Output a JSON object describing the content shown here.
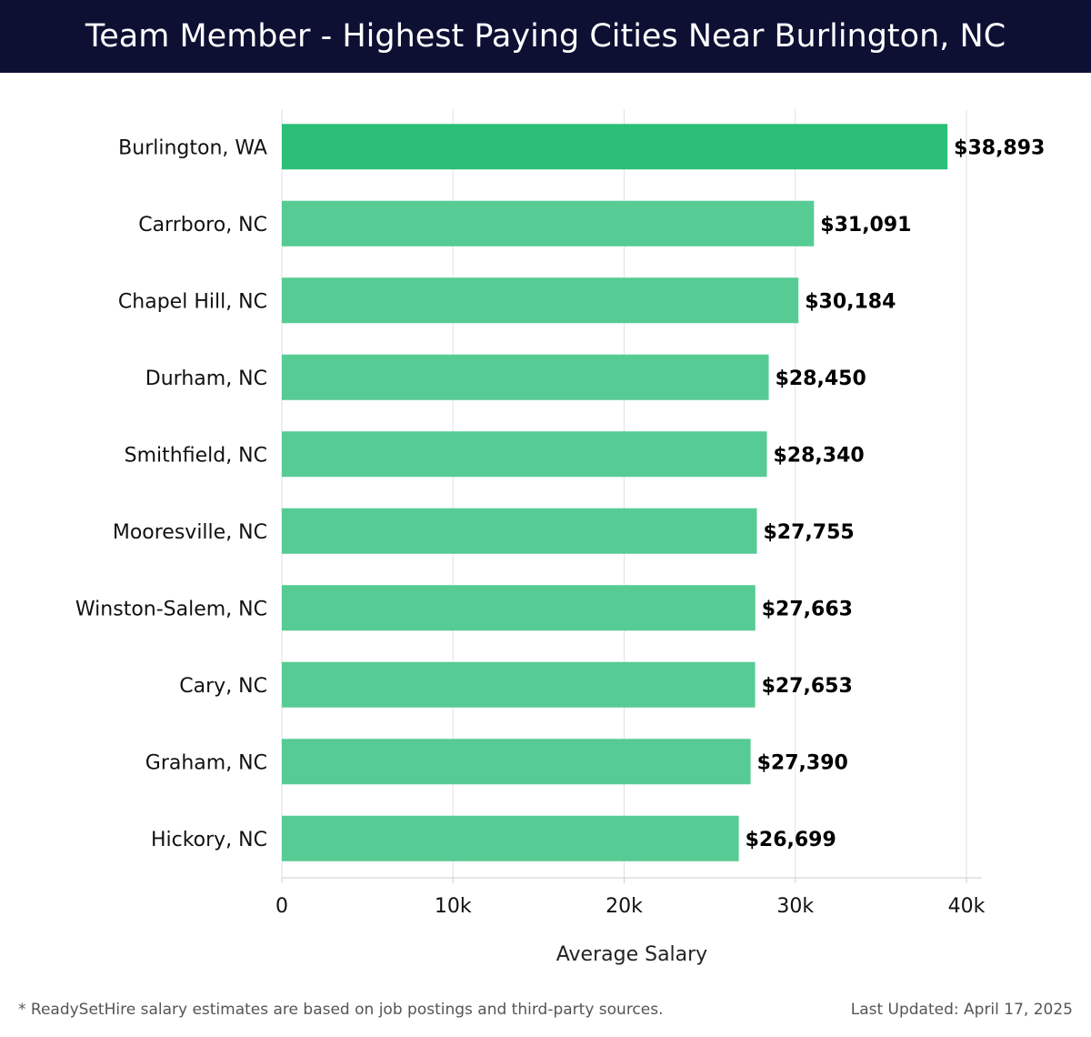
{
  "header": {
    "title": "Team Member - Highest Paying Cities Near Burlington, NC"
  },
  "chart_data": {
    "type": "bar",
    "orientation": "horizontal",
    "title": "Team Member - Highest Paying Cities Near Burlington, NC",
    "categories": [
      "Burlington, WA",
      "Carrboro, NC",
      "Chapel Hill, NC",
      "Durham, NC",
      "Smithfield, NC",
      "Mooresville, NC",
      "Winston-Salem, NC",
      "Cary, NC",
      "Graham, NC",
      "Hickory, NC"
    ],
    "values": [
      38893,
      31091,
      30184,
      28450,
      28340,
      27755,
      27663,
      27653,
      27390,
      26699
    ],
    "value_labels": [
      "$38,893",
      "$31,091",
      "$30,184",
      "$28,450",
      "$28,340",
      "$27,755",
      "$27,663",
      "$27,653",
      "$27,390",
      "$26,699"
    ],
    "xlabel": "Average Salary",
    "ylabel": "",
    "xlim": [
      0,
      40000
    ],
    "xticks": [
      0,
      10000,
      20000,
      30000,
      40000
    ],
    "xtick_labels": [
      "0",
      "10k",
      "20k",
      "30k",
      "40k"
    ],
    "grid": true,
    "colors": {
      "highlight": "#2bbf78",
      "bar": "#56cb94",
      "grid": "#e2e2e2",
      "axis": "#cccccc"
    }
  },
  "footer": {
    "note": "* ReadySetHire salary estimates are based on job postings and third-party sources.",
    "updated": "Last Updated: April 17, 2025"
  }
}
